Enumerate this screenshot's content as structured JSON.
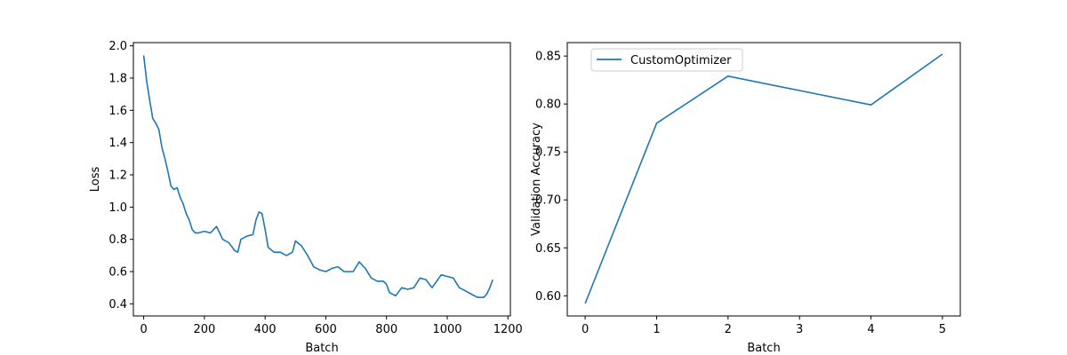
{
  "chart_data": [
    {
      "type": "line",
      "xlabel": "Batch",
      "ylabel": "Loss",
      "xlim": [
        -34,
        1208
      ],
      "ylim": [
        0.325,
        2.02
      ],
      "x_ticks": [
        0,
        200,
        400,
        600,
        800,
        1000,
        1200
      ],
      "y_ticks": [
        0.4,
        0.6,
        0.8,
        1.0,
        1.2,
        1.4,
        1.6,
        1.8,
        2.0
      ],
      "x_tick_labels": [
        "0",
        "200",
        "400",
        "600",
        "800",
        "1000",
        "1200"
      ],
      "y_tick_labels": [
        "0.4",
        "0.6",
        "0.8",
        "1.0",
        "1.2",
        "1.4",
        "1.6",
        "1.8",
        "2.0"
      ],
      "grid": false,
      "line_color": "#1f77b4",
      "series": [
        {
          "x": [
            0,
            10,
            20,
            30,
            40,
            50,
            60,
            70,
            80,
            90,
            100,
            110,
            120,
            130,
            140,
            150,
            160,
            170,
            180,
            200,
            220,
            240,
            250,
            260,
            280,
            300,
            310,
            320,
            340,
            360,
            370,
            380,
            390,
            400,
            410,
            430,
            450,
            470,
            490,
            500,
            520,
            540,
            560,
            580,
            600,
            620,
            640,
            660,
            690,
            710,
            730,
            750,
            770,
            790,
            800,
            810,
            830,
            850,
            870,
            890,
            910,
            930,
            950,
            980,
            1000,
            1020,
            1040,
            1060,
            1080,
            1100,
            1120,
            1130,
            1140,
            1150
          ],
          "values": [
            1.94,
            1.78,
            1.66,
            1.55,
            1.52,
            1.48,
            1.37,
            1.3,
            1.22,
            1.13,
            1.11,
            1.12,
            1.06,
            1.02,
            0.96,
            0.92,
            0.86,
            0.84,
            0.84,
            0.85,
            0.84,
            0.88,
            0.84,
            0.8,
            0.78,
            0.73,
            0.72,
            0.8,
            0.82,
            0.83,
            0.92,
            0.97,
            0.96,
            0.86,
            0.75,
            0.72,
            0.72,
            0.7,
            0.72,
            0.79,
            0.76,
            0.7,
            0.63,
            0.61,
            0.6,
            0.62,
            0.63,
            0.6,
            0.6,
            0.66,
            0.62,
            0.56,
            0.54,
            0.54,
            0.52,
            0.47,
            0.45,
            0.5,
            0.49,
            0.5,
            0.56,
            0.55,
            0.5,
            0.58,
            0.57,
            0.56,
            0.5,
            0.48,
            0.46,
            0.44,
            0.44,
            0.46,
            0.5,
            0.55
          ]
        }
      ]
    },
    {
      "type": "line",
      "xlabel": "Batch",
      "ylabel": "Validation Accuracy",
      "xlim": [
        -0.25,
        5.25
      ],
      "ylim": [
        0.579,
        0.864
      ],
      "x_ticks": [
        0,
        1,
        2,
        3,
        4,
        5
      ],
      "y_ticks": [
        0.6,
        0.65,
        0.7,
        0.75,
        0.8,
        0.85
      ],
      "x_tick_labels": [
        "0",
        "1",
        "2",
        "3",
        "4",
        "5"
      ],
      "y_tick_labels": [
        "0.60",
        "0.65",
        "0.70",
        "0.75",
        "0.80",
        "0.85"
      ],
      "grid": false,
      "line_color": "#1f77b4",
      "legend": {
        "position": "top-left"
      },
      "series": [
        {
          "name": "CustomOptimizer",
          "x": [
            0,
            1,
            2,
            3,
            4,
            5
          ],
          "values": [
            0.592,
            0.78,
            0.829,
            0.814,
            0.799,
            0.852
          ]
        }
      ]
    }
  ]
}
